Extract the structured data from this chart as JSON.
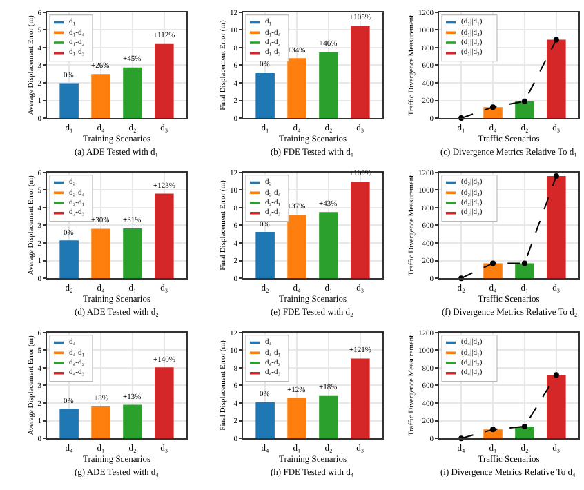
{
  "chart_data": [
    {
      "type": "bar",
      "title": "(a) ADE Tested with d₁",
      "xlabel": "Training Scenarios",
      "ylabel": "Average Displacement Error (m)",
      "categories": [
        "d₁",
        "d₄",
        "d₂",
        "d₃"
      ],
      "ylim": [
        0,
        6
      ],
      "yticks": [
        0,
        1,
        2,
        3,
        4,
        5,
        6
      ],
      "grid": true,
      "legend": "top left",
      "series": [
        {
          "name": "d₁",
          "color": "#1f77b4",
          "values": [
            1.98,
            null,
            null,
            null
          ]
        },
        {
          "name": "d₁-d₄",
          "color": "#ff7f0e",
          "values": [
            null,
            2.5,
            null,
            null
          ]
        },
        {
          "name": "d₁-d₂",
          "color": "#2ca02c",
          "values": [
            null,
            null,
            2.87,
            null
          ]
        },
        {
          "name": "d₁-d₃",
          "color": "#d62728",
          "values": [
            null,
            null,
            null,
            4.2
          ]
        }
      ],
      "annotations": [
        {
          "text": "0%",
          "x": "d₁",
          "y": 1.98
        },
        {
          "text": "+26%",
          "x": "d₄",
          "y": 2.5
        },
        {
          "text": "+45%",
          "x": "d₂",
          "y": 2.87
        },
        {
          "text": "+112%",
          "x": "d₃",
          "y": 4.2
        }
      ]
    },
    {
      "type": "bar",
      "title": "(b) FDE Tested with d₁",
      "xlabel": "Training Scenarios",
      "ylabel": "Final Displacement Error (m)",
      "categories": [
        "d₁",
        "d₄",
        "d₂",
        "d₃"
      ],
      "ylim": [
        0,
        12
      ],
      "yticks": [
        0,
        2,
        4,
        6,
        8,
        10,
        12
      ],
      "grid": true,
      "legend": "top left",
      "series": [
        {
          "name": "d₁",
          "color": "#1f77b4",
          "values": [
            5.1,
            null,
            null,
            null
          ]
        },
        {
          "name": "d₁-d₄",
          "color": "#ff7f0e",
          "values": [
            null,
            6.8,
            null,
            null
          ]
        },
        {
          "name": "d₁-d₂",
          "color": "#2ca02c",
          "values": [
            null,
            null,
            7.45,
            null
          ]
        },
        {
          "name": "d₁-d₃",
          "color": "#d62728",
          "values": [
            null,
            null,
            null,
            10.45
          ]
        }
      ],
      "annotations": [
        {
          "text": "0%",
          "x": "d₁",
          "y": 5.1
        },
        {
          "text": "+34%",
          "x": "d₄",
          "y": 6.8
        },
        {
          "text": "+46%",
          "x": "d₂",
          "y": 7.45
        },
        {
          "text": "+105%",
          "x": "d₃",
          "y": 10.45
        }
      ]
    },
    {
      "type": "bar",
      "title": "(c) Divergence Metrics Relative To d₁",
      "xlabel": "Traffic Scenarios",
      "ylabel": "Traffic Divergence Measurement",
      "categories": [
        "d₁",
        "d₄",
        "d₂",
        "d₃"
      ],
      "ylim": [
        0,
        1200
      ],
      "yticks": [
        0,
        200,
        400,
        600,
        800,
        1000,
        1200
      ],
      "grid": true,
      "legend": "top left",
      "series": [
        {
          "name": "(d₁||d₁)",
          "color": "#1f77b4",
          "values": [
            0,
            null,
            null,
            null
          ]
        },
        {
          "name": "(d₁||d₄)",
          "color": "#ff7f0e",
          "values": [
            null,
            125,
            null,
            null
          ]
        },
        {
          "name": "(d₁||d₂)",
          "color": "#2ca02c",
          "values": [
            null,
            null,
            190,
            null
          ]
        },
        {
          "name": "(d₁||d₃)",
          "color": "#d62728",
          "values": [
            null,
            null,
            null,
            890
          ]
        },
        {
          "type": "line",
          "color": "#000000",
          "line_style": "dashed",
          "marker": "circle",
          "values": [
            0,
            125,
            190,
            890
          ]
        }
      ]
    },
    {
      "type": "bar",
      "title": "(d) ADE Tested with d₂",
      "xlabel": "Training Scenarios",
      "ylabel": "Average Displacement Error (m)",
      "categories": [
        "d₂",
        "d₄",
        "d₁",
        "d₃"
      ],
      "ylim": [
        0,
        6
      ],
      "yticks": [
        0,
        1,
        2,
        3,
        4,
        5,
        6
      ],
      "grid": true,
      "legend": "top left",
      "series": [
        {
          "name": "d₂",
          "color": "#1f77b4",
          "values": [
            2.15,
            null,
            null,
            null
          ]
        },
        {
          "name": "d₂-d₄",
          "color": "#ff7f0e",
          "values": [
            null,
            2.8,
            null,
            null
          ]
        },
        {
          "name": "d₂-d₁",
          "color": "#2ca02c",
          "values": [
            null,
            null,
            2.82,
            null
          ]
        },
        {
          "name": "d₂-d₃",
          "color": "#d62728",
          "values": [
            null,
            null,
            null,
            4.8
          ]
        }
      ],
      "annotations": [
        {
          "text": "0%",
          "x": "d₂",
          "y": 2.15
        },
        {
          "text": "+30%",
          "x": "d₄",
          "y": 2.8
        },
        {
          "text": "+31%",
          "x": "d₁",
          "y": 2.82
        },
        {
          "text": "+123%",
          "x": "d₃",
          "y": 4.8
        }
      ]
    },
    {
      "type": "bar",
      "title": "(e) FDE Tested with d₂",
      "xlabel": "Training Scenarios",
      "ylabel": "Final Displacement Error (m)",
      "categories": [
        "d₂",
        "d₄",
        "d₁",
        "d₃"
      ],
      "ylim": [
        0,
        12
      ],
      "yticks": [
        0,
        2,
        4,
        6,
        8,
        10,
        12
      ],
      "grid": true,
      "legend": "top left",
      "series": [
        {
          "name": "d₂",
          "color": "#1f77b4",
          "values": [
            5.25,
            null,
            null,
            null
          ]
        },
        {
          "name": "d₂-d₄",
          "color": "#ff7f0e",
          "values": [
            null,
            7.2,
            null,
            null
          ]
        },
        {
          "name": "d₂-d₁",
          "color": "#2ca02c",
          "values": [
            null,
            null,
            7.5,
            null
          ]
        },
        {
          "name": "d₂-d₃",
          "color": "#d62728",
          "values": [
            null,
            null,
            null,
            10.9
          ]
        }
      ],
      "annotations": [
        {
          "text": "0%",
          "x": "d₂",
          "y": 5.25
        },
        {
          "text": "+37%",
          "x": "d₄",
          "y": 7.2
        },
        {
          "text": "+43%",
          "x": "d₁",
          "y": 7.5
        },
        {
          "text": "+109%",
          "x": "d₃",
          "y": 10.9
        }
      ]
    },
    {
      "type": "bar",
      "title": "(f) Divergence Metrics Relative To d₂",
      "xlabel": "Traffic Scenarios",
      "ylabel": "Traffic Divergence Measurement",
      "categories": [
        "d₂",
        "d₄",
        "d₁",
        "d₃"
      ],
      "ylim": [
        0,
        1200
      ],
      "yticks": [
        0,
        200,
        400,
        600,
        800,
        1000,
        1200
      ],
      "grid": true,
      "legend": "top left",
      "series": [
        {
          "name": "(d₂||d₂)",
          "color": "#1f77b4",
          "values": [
            0,
            null,
            null,
            null
          ]
        },
        {
          "name": "(d₂||d₄)",
          "color": "#ff7f0e",
          "values": [
            null,
            170,
            null,
            null
          ]
        },
        {
          "name": "(d₂||d₁)",
          "color": "#2ca02c",
          "values": [
            null,
            null,
            170,
            null
          ]
        },
        {
          "name": "(d₂||d₃)",
          "color": "#d62728",
          "values": [
            null,
            null,
            null,
            1160
          ]
        },
        {
          "type": "line",
          "color": "#000000",
          "line_style": "dashed",
          "marker": "circle",
          "values": [
            0,
            170,
            170,
            1160
          ]
        }
      ]
    },
    {
      "type": "bar",
      "title": "(g) ADE Tested with d₄",
      "xlabel": "Training Scenarios",
      "ylabel": "Average Displacement Error (m)",
      "categories": [
        "d₄",
        "d₁",
        "d₂",
        "d₃"
      ],
      "ylim": [
        0,
        6
      ],
      "yticks": [
        0,
        1,
        2,
        3,
        4,
        5,
        6
      ],
      "grid": true,
      "legend": "top left",
      "series": [
        {
          "name": "d₄",
          "color": "#1f77b4",
          "values": [
            1.68,
            null,
            null,
            null
          ]
        },
        {
          "name": "d₄-d₁",
          "color": "#ff7f0e",
          "values": [
            null,
            1.81,
            null,
            null
          ]
        },
        {
          "name": "d₄-d₂",
          "color": "#2ca02c",
          "values": [
            null,
            null,
            1.9,
            null
          ]
        },
        {
          "name": "d₄-d₃",
          "color": "#d62728",
          "values": [
            null,
            null,
            null,
            4.03
          ]
        }
      ],
      "annotations": [
        {
          "text": "0%",
          "x": "d₄",
          "y": 1.68
        },
        {
          "text": "+8%",
          "x": "d₁",
          "y": 1.81
        },
        {
          "text": "+13%",
          "x": "d₂",
          "y": 1.9
        },
        {
          "text": "+140%",
          "x": "d₃",
          "y": 4.03
        }
      ]
    },
    {
      "type": "bar",
      "title": "(h) FDE Tested with d₄",
      "xlabel": "Training Scenarios",
      "ylabel": "Final Displacement Error (m)",
      "categories": [
        "d₄",
        "d₁",
        "d₂",
        "d₃"
      ],
      "ylim": [
        0,
        12
      ],
      "yticks": [
        0,
        2,
        4,
        6,
        8,
        10,
        12
      ],
      "grid": true,
      "legend": "top left",
      "series": [
        {
          "name": "d₄",
          "color": "#1f77b4",
          "values": [
            4.1,
            null,
            null,
            null
          ]
        },
        {
          "name": "d₄-d₁",
          "color": "#ff7f0e",
          "values": [
            null,
            4.6,
            null,
            null
          ]
        },
        {
          "name": "d₄-d₂",
          "color": "#2ca02c",
          "values": [
            null,
            null,
            4.8,
            null
          ]
        },
        {
          "name": "d₄-d₃",
          "color": "#d62728",
          "values": [
            null,
            null,
            null,
            9.05
          ]
        }
      ],
      "annotations": [
        {
          "text": "0%",
          "x": "d₄",
          "y": 4.1
        },
        {
          "text": "+12%",
          "x": "d₁",
          "y": 4.6
        },
        {
          "text": "+18%",
          "x": "d₂",
          "y": 4.8
        },
        {
          "text": "+121%",
          "x": "d₃",
          "y": 9.05
        }
      ]
    },
    {
      "type": "bar",
      "title": "(i) Divergence Metrics Relative To d₄",
      "xlabel": "Traffic Scenarios",
      "ylabel": "Traffic Divergence Measurement",
      "categories": [
        "d₄",
        "d₁",
        "d₂",
        "d₃"
      ],
      "ylim": [
        0,
        1200
      ],
      "yticks": [
        0,
        200,
        400,
        600,
        800,
        1000,
        1200
      ],
      "grid": true,
      "legend": "top left",
      "series": [
        {
          "name": "(d₄||d₄)",
          "color": "#1f77b4",
          "values": [
            0,
            null,
            null,
            null
          ]
        },
        {
          "name": "(d₄||d₁)",
          "color": "#ff7f0e",
          "values": [
            null,
            100,
            null,
            null
          ]
        },
        {
          "name": "(d₄||d₂)",
          "color": "#2ca02c",
          "values": [
            null,
            null,
            135,
            null
          ]
        },
        {
          "name": "(d₄||d₃)",
          "color": "#d62728",
          "values": [
            null,
            null,
            null,
            720
          ]
        },
        {
          "type": "line",
          "color": "#000000",
          "line_style": "dashed",
          "marker": "circle",
          "values": [
            0,
            100,
            135,
            720
          ]
        }
      ]
    }
  ]
}
